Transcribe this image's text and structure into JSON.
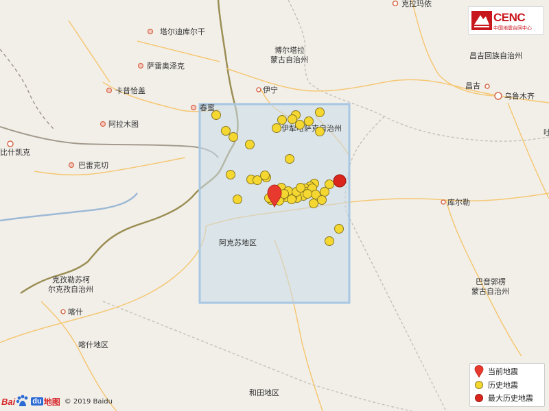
{
  "map": {
    "region_label": "阿克苏地区",
    "place_labels": [
      {
        "id": "kelayi",
        "text": "克拉玛依"
      },
      {
        "id": "taerdi",
        "text": "塔尔迪库尔干"
      },
      {
        "id": "bole",
        "text": "博尔塔拉\n蒙古自治州"
      },
      {
        "id": "changji",
        "text": "昌吉回族自治州"
      },
      {
        "id": "saleiao",
        "text": "萨雷奥泽克"
      },
      {
        "id": "kapuqia",
        "text": "卡普恰盖"
      },
      {
        "id": "yining",
        "text": "伊宁"
      },
      {
        "id": "changji_city",
        "text": "昌吉"
      },
      {
        "id": "urumqi",
        "text": "乌鲁木齐"
      },
      {
        "id": "almaty",
        "text": "阿拉木图"
      },
      {
        "id": "chunmi",
        "text": "春蜜"
      },
      {
        "id": "yili",
        "text": "伊犁哈萨克自治州"
      },
      {
        "id": "bishkek",
        "text": "比什凯克"
      },
      {
        "id": "balei",
        "text": "巴雷克切"
      },
      {
        "id": "korla",
        "text": "库尔勒"
      },
      {
        "id": "kezi",
        "text": "克孜勒苏柯\n尔克孜自治州"
      },
      {
        "id": "bayin",
        "text": "巴音郭楞\n蒙古自治州"
      },
      {
        "id": "kashi",
        "text": "喀什"
      },
      {
        "id": "kashi_area",
        "text": "喀什地区"
      },
      {
        "id": "hetian",
        "text": "和田地区"
      },
      {
        "id": "tu",
        "text": "吐"
      }
    ],
    "current_quake": {
      "label": "当前地震"
    },
    "largest_quake": {
      "label": "最大历史地震"
    }
  },
  "historical_quakes_count": 52,
  "legend": {
    "current": "当前地震",
    "history": "历史地震",
    "largest": "最大历史地震"
  },
  "logo": {
    "name": "CENC",
    "sub": "中国地震台网中心"
  },
  "attribution": {
    "bai": "Bai",
    "du": "du",
    "ditu": "地图",
    "copyright": "© 2019 Baidu"
  },
  "colors": {
    "marker_red": "#e8392f",
    "history_yellow": "#f5d731",
    "largest_red": "#d9251c",
    "box_fill": "#c9dbea",
    "box_stroke": "#a7c7e2"
  }
}
